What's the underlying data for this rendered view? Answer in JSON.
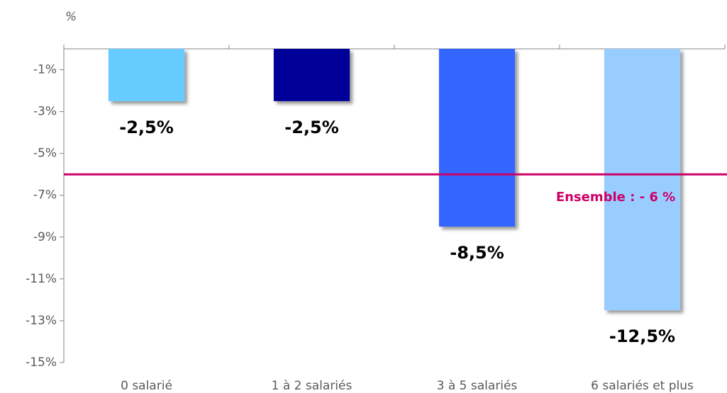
{
  "chart_data": {
    "type": "bar",
    "y_label": "%",
    "categories": [
      "0 salarié",
      "1 à 2 salariés",
      "3 à 5 salariés",
      "6 salariés et plus"
    ],
    "values": [
      -2.5,
      -2.5,
      -8.5,
      -12.5
    ],
    "value_labels": [
      "-2,5%",
      "-2,5%",
      "-8,5%",
      "-12,5%"
    ],
    "colors": [
      "#66ccff",
      "#000099",
      "#3366ff",
      "#99ccff"
    ],
    "ylim": [
      -15,
      0
    ],
    "yticks": [
      {
        "value": -1,
        "label": "-1%"
      },
      {
        "value": -3,
        "label": "-3%"
      },
      {
        "value": -5,
        "label": "-5%"
      },
      {
        "value": -7,
        "label": "-7%"
      },
      {
        "value": -9,
        "label": "-9%"
      },
      {
        "value": -11,
        "label": "-11%"
      },
      {
        "value": -13,
        "label": "-13%"
      },
      {
        "value": -15,
        "label": "-15%"
      }
    ],
    "reference_line": {
      "value": -6,
      "label": "Ensemble : - 6 %",
      "color": "#cc0066"
    },
    "grid": false
  }
}
